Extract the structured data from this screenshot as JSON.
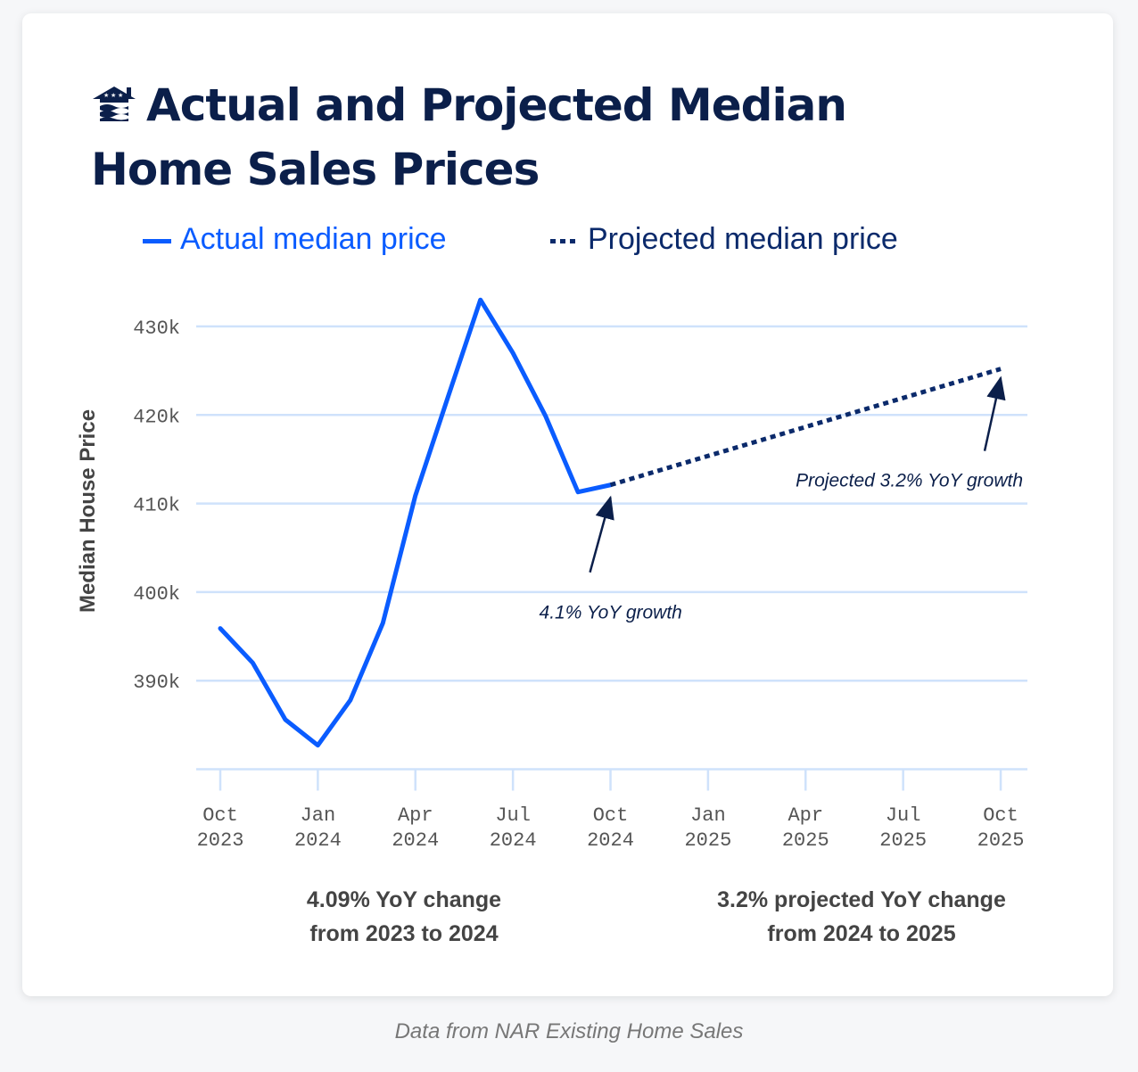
{
  "title": "Actual and Projected Median Home Sales Prices",
  "logo": "house-with-stars-and-waves-logo",
  "colors": {
    "actual": "#0a5cff",
    "projected": "#0b2a6b",
    "grid": "#cfe2fb",
    "title": "#0b1f4a"
  },
  "caption": "Data from NAR Existing Home Sales",
  "summaries": [
    {
      "line1": "4.09% YoY change",
      "line2": "from 2023 to 2024"
    },
    {
      "line1": "3.2% projected YoY change",
      "line2": "from 2024 to 2025"
    }
  ],
  "chart_data": {
    "type": "line",
    "title": "Actual and Projected Median Home Sales Prices",
    "xlabel": "",
    "ylabel": "Median House Price",
    "ylim": [
      380000,
      433000
    ],
    "yticks": [
      390000,
      400000,
      410000,
      420000,
      430000
    ],
    "ytick_labels": [
      "390k",
      "400k",
      "410k",
      "420k",
      "430k"
    ],
    "xticks": [
      "2023-10",
      "2024-01",
      "2024-04",
      "2024-07",
      "2024-10",
      "2025-01",
      "2025-04",
      "2025-07",
      "2025-10"
    ],
    "xtick_labels": [
      [
        "Oct",
        "2023"
      ],
      [
        "Jan",
        "2024"
      ],
      [
        "Apr",
        "2024"
      ],
      [
        "Jul",
        "2024"
      ],
      [
        "Oct",
        "2024"
      ],
      [
        "Jan",
        "2025"
      ],
      [
        "Apr",
        "2025"
      ],
      [
        "Jul",
        "2025"
      ],
      [
        "Oct",
        "2025"
      ]
    ],
    "grid": "horizontal",
    "legend_placement": "top",
    "series": [
      {
        "name": "Actual median price",
        "style": "solid",
        "x": [
          "2023-10",
          "2023-11",
          "2023-12",
          "2024-01",
          "2024-02",
          "2024-03",
          "2024-04",
          "2024-05",
          "2024-06",
          "2024-07",
          "2024-08",
          "2024-09",
          "2024-10"
        ],
        "y": [
          395900,
          392000,
          385600,
          382700,
          387800,
          396500,
          410900,
          422000,
          433000,
          427000,
          419900,
          411300,
          412100
        ]
      },
      {
        "name": "Projected median price",
        "style": "dotted",
        "x": [
          "2024-10",
          "2025-10"
        ],
        "y": [
          412100,
          425200
        ]
      }
    ],
    "annotations": [
      {
        "text": "4.1% YoY growth",
        "x": "2024-10",
        "y": 412100
      },
      {
        "text": "Projected 3.2% YoY growth",
        "x": "2025-10",
        "y": 425200
      }
    ]
  }
}
